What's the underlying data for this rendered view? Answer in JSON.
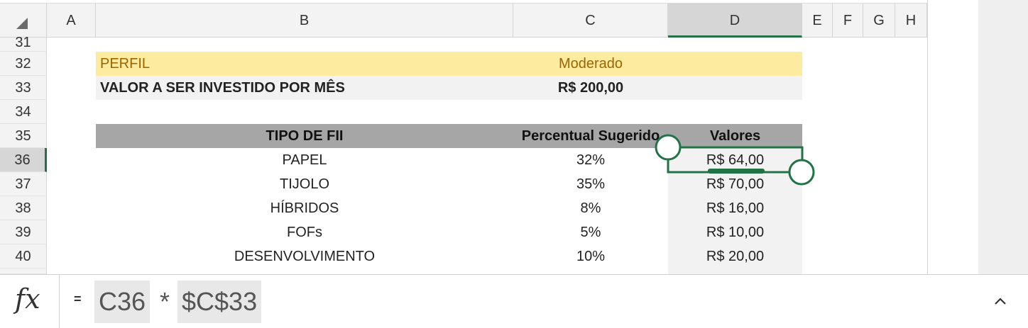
{
  "columns": [
    "A",
    "B",
    "C",
    "D",
    "E",
    "F",
    "G",
    "H"
  ],
  "selected_column": "D",
  "rows": [
    "31",
    "32",
    "33",
    "34",
    "35",
    "36",
    "37",
    "38",
    "39",
    "40"
  ],
  "selected_row": "36",
  "profile": {
    "label": "PERFIL",
    "value": "Moderado",
    "color": "#fdeba0",
    "text_color": "#9c6500"
  },
  "monthly": {
    "label": "VALOR A SER INVESTIDO POR MÊS",
    "value": "R$ 200,00"
  },
  "table": {
    "headers": [
      "TIPO DE FII",
      "Percentual Sugerido",
      "Valores"
    ],
    "header_color": "#a6a6a6",
    "rows": [
      {
        "tipo": "PAPEL",
        "percentual": "32%",
        "valor": "R$ 64,00"
      },
      {
        "tipo": "TIJOLO",
        "percentual": "35%",
        "valor": "R$ 70,00"
      },
      {
        "tipo": "HÍBRIDOS",
        "percentual": "8%",
        "valor": "R$ 16,00"
      },
      {
        "tipo": "FOFs",
        "percentual": "5%",
        "valor": "R$ 10,00"
      },
      {
        "tipo": "DESENVOLVIMENTO",
        "percentual": "10%",
        "valor": "R$ 20,00"
      }
    ]
  },
  "formula": {
    "icon": "fx-icon",
    "equals": "=",
    "ref1": "C36",
    "operator": "*",
    "ref2": "$C$33"
  },
  "selection_color": "#217346"
}
